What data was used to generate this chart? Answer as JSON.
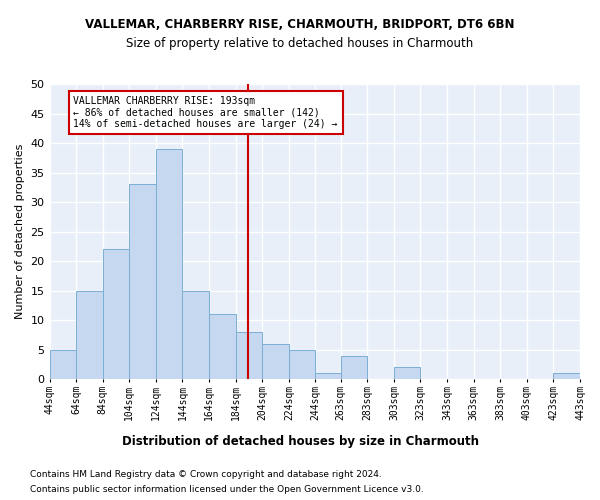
{
  "title_line1": "VALLEMAR, CHARBERRY RISE, CHARMOUTH, BRIDPORT, DT6 6BN",
  "title_line2": "Size of property relative to detached houses in Charmouth",
  "xlabel": "Distribution of detached houses by size in Charmouth",
  "ylabel": "Number of detached properties",
  "bar_color": "#c5d8f0",
  "bar_edge_color": "#7bafd4",
  "bg_color": "#e8eff8",
  "grid_color": "#ffffff",
  "bin_edges": [
    44,
    64,
    84,
    104,
    124,
    144,
    164,
    184,
    204,
    224,
    244,
    263,
    283,
    303,
    323,
    343,
    363,
    383,
    403,
    423,
    443
  ],
  "bin_labels": [
    "44sqm",
    "64sqm",
    "84sqm",
    "104sqm",
    "124sqm",
    "144sqm",
    "164sqm",
    "184sqm",
    "204sqm",
    "224sqm",
    "244sqm",
    "263sqm",
    "283sqm",
    "303sqm",
    "323sqm",
    "343sqm",
    "363sqm",
    "383sqm",
    "403sqm",
    "423sqm",
    "443sqm"
  ],
  "counts": [
    5,
    15,
    22,
    33,
    39,
    15,
    11,
    8,
    6,
    5,
    1,
    4,
    0,
    2,
    0,
    0,
    0,
    0,
    0,
    1
  ],
  "property_size": 193,
  "vline_color": "#cc0000",
  "annotation_line1": "VALLEMAR CHARBERRY RISE: 193sqm",
  "annotation_line2": "← 86% of detached houses are smaller (142)",
  "annotation_line3": "14% of semi-detached houses are larger (24) →",
  "annotation_box_edge": "#cc0000",
  "ylim": [
    0,
    50
  ],
  "yticks": [
    0,
    5,
    10,
    15,
    20,
    25,
    30,
    35,
    40,
    45,
    50
  ],
  "footnote1": "Contains HM Land Registry data © Crown copyright and database right 2024.",
  "footnote2": "Contains public sector information licensed under the Open Government Licence v3.0."
}
